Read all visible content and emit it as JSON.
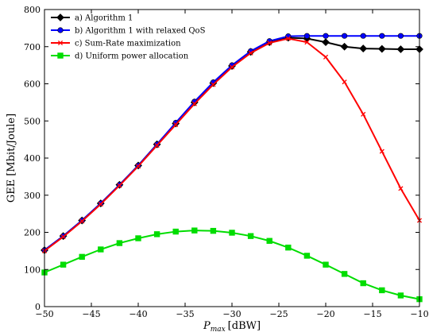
{
  "chart_data": {
    "type": "line",
    "title": "",
    "xlabel_main": "P",
    "xlabel_sub": "max",
    "xlabel_unit": "[dBW]",
    "ylabel": "GEE [Mbit/Joule]",
    "xlim": [
      -50,
      -10
    ],
    "ylim": [
      0,
      800
    ],
    "xticks": [
      -50,
      -45,
      -40,
      -35,
      -30,
      -25,
      -20,
      -15,
      -10
    ],
    "yticks": [
      0,
      100,
      200,
      300,
      400,
      500,
      600,
      700,
      800
    ],
    "grid": false,
    "legend_position": "top-left",
    "x": [
      -50,
      -48,
      -46,
      -44,
      -42,
      -40,
      -38,
      -36,
      -34,
      -32,
      -30,
      -28,
      -26,
      -24,
      -22,
      -20,
      -18,
      -16,
      -14,
      -12,
      -10
    ],
    "series": [
      {
        "name": "a) Algorithm 1",
        "color": "#000000",
        "marker": "diamond",
        "values": [
          152,
          190,
          232,
          278,
          328,
          380,
          437,
          493,
          550,
          602,
          648,
          686,
          712,
          724,
          722,
          712,
          700,
          695,
          694,
          693,
          693
        ]
      },
      {
        "name": "b) Algorithm 1 with relaxed QoS",
        "color": "#0000ff",
        "marker": "circle",
        "values": [
          152,
          190,
          232,
          278,
          328,
          380,
          437,
          495,
          552,
          604,
          650,
          688,
          715,
          728,
          729,
          729,
          729,
          729,
          729,
          729,
          729
        ]
      },
      {
        "name": "c) Sum-Rate maximization",
        "color": "#ff0000",
        "marker": "x",
        "values": [
          150,
          188,
          230,
          276,
          326,
          378,
          434,
          490,
          546,
          598,
          645,
          683,
          710,
          722,
          712,
          672,
          605,
          518,
          418,
          318,
          232
        ]
      },
      {
        "name": "d) Uniform power allocation",
        "color": "#00dd00",
        "marker": "square",
        "values": [
          92,
          113,
          134,
          154,
          171,
          184,
          195,
          202,
          205,
          204,
          199,
          190,
          177,
          159,
          137,
          113,
          88,
          63,
          44,
          30,
          20
        ]
      }
    ]
  }
}
